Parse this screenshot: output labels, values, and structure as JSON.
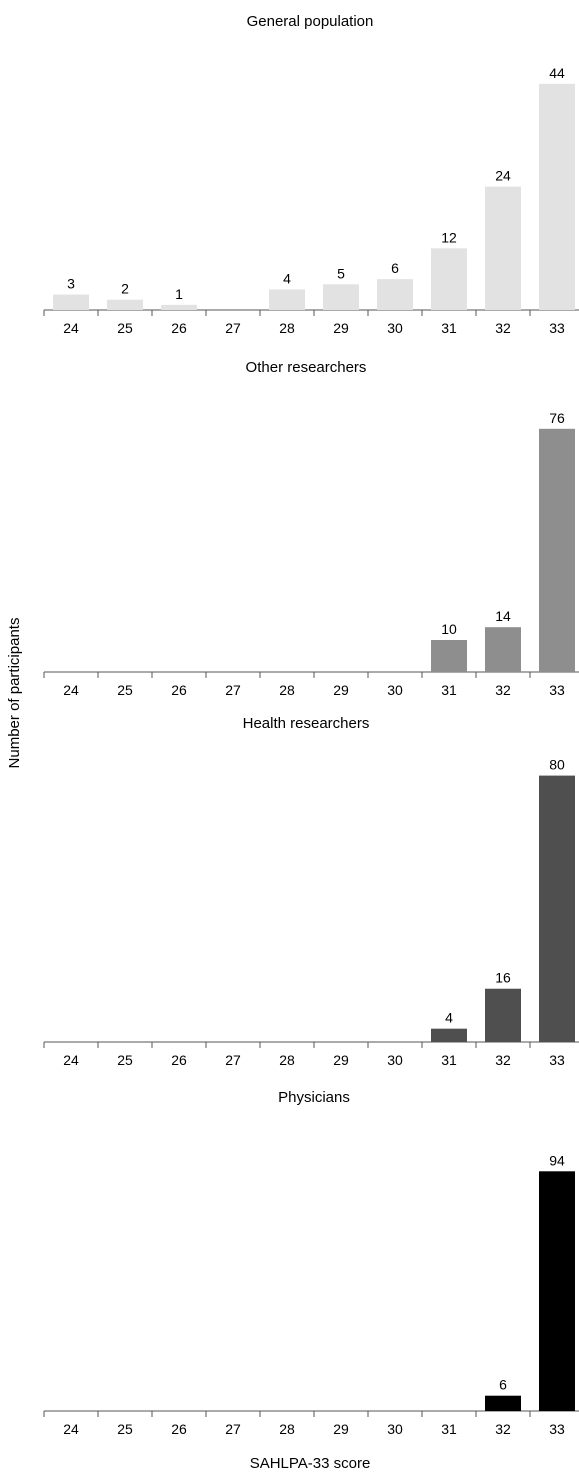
{
  "figure": {
    "ylabel": "Number of participants",
    "xlabel": "SAHLPA-33 score"
  },
  "chart_data": [
    {
      "type": "bar",
      "title": "General population",
      "categories": [
        "24",
        "25",
        "26",
        "27",
        "28",
        "29",
        "30",
        "31",
        "32",
        "33"
      ],
      "values": [
        3,
        2,
        1,
        0,
        4,
        5,
        6,
        12,
        24,
        44
      ],
      "data_labels": [
        "3",
        "2",
        "1",
        "",
        "4",
        "5",
        "6",
        "12",
        "24",
        "44"
      ],
      "color": "#e2e2e2"
    },
    {
      "type": "bar",
      "title": "Other researchers",
      "categories": [
        "24",
        "25",
        "26",
        "27",
        "28",
        "29",
        "30",
        "31",
        "32",
        "33"
      ],
      "values": [
        0,
        0,
        0,
        0,
        0,
        0,
        0,
        10,
        14,
        76
      ],
      "data_labels": [
        "",
        "",
        "",
        "",
        "",
        "",
        "",
        "10",
        "14",
        "76"
      ],
      "color": "#8e8e8e"
    },
    {
      "type": "bar",
      "title": "Health researchers",
      "categories": [
        "24",
        "25",
        "26",
        "27",
        "28",
        "29",
        "30",
        "31",
        "32",
        "33"
      ],
      "values": [
        0,
        0,
        0,
        0,
        0,
        0,
        0,
        4,
        16,
        80
      ],
      "data_labels": [
        "",
        "",
        "",
        "",
        "",
        "",
        "",
        "4",
        "16",
        "80"
      ],
      "color": "#4f4f4f"
    },
    {
      "type": "bar",
      "title": "Physicians",
      "categories": [
        "24",
        "25",
        "26",
        "27",
        "28",
        "29",
        "30",
        "31",
        "32",
        "33"
      ],
      "values": [
        0,
        0,
        0,
        0,
        0,
        0,
        0,
        0,
        6,
        94
      ],
      "data_labels": [
        "",
        "",
        "",
        "",
        "",
        "",
        "",
        "",
        "6",
        "94"
      ],
      "color": "#000000"
    }
  ]
}
